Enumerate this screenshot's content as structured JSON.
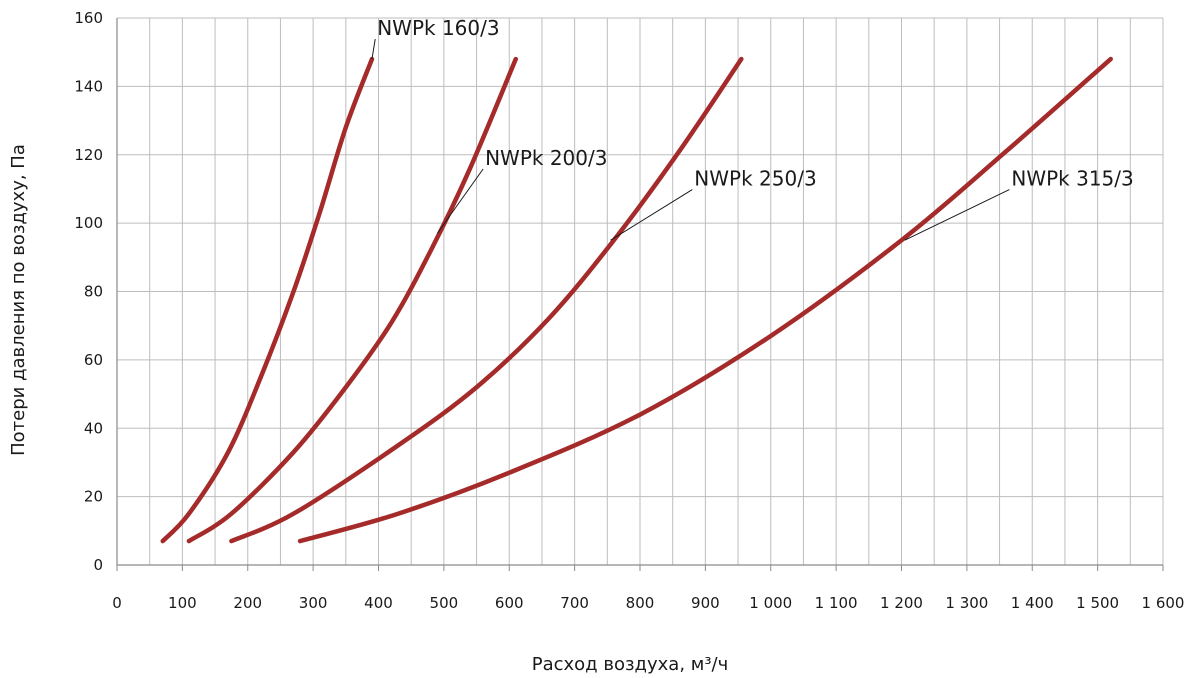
{
  "chart_data": {
    "type": "line",
    "title": "",
    "xlabel": "Расход воздуха, м³/ч",
    "ylabel": "Потери давления по воздуху, Па",
    "xlim": [
      0,
      1600
    ],
    "ylim": [
      0,
      160
    ],
    "x_ticks": [
      0,
      100,
      200,
      300,
      400,
      500,
      600,
      700,
      800,
      900,
      1000,
      1100,
      1200,
      1300,
      1400,
      1500,
      1600
    ],
    "x_tick_labels": [
      "0",
      "100",
      "200",
      "300",
      "400",
      "500",
      "600",
      "700",
      "800",
      "900",
      "1 000",
      "1 100",
      "1 200",
      "1 300",
      "1 400",
      "1 500",
      "1 600"
    ],
    "y_ticks": [
      0,
      20,
      40,
      60,
      80,
      100,
      120,
      140,
      160
    ],
    "y_tick_labels": [
      "0",
      "20",
      "40",
      "60",
      "80",
      "100",
      "120",
      "140",
      "160"
    ],
    "grid": true,
    "legend": "none",
    "line_color": "#A52A2A",
    "series": [
      {
        "name": "NWPk 160/3",
        "x": [
          70,
          110,
          170,
          220,
          270,
          310,
          350,
          390
        ],
        "y": [
          7,
          15,
          33,
          55,
          80,
          103,
          128,
          148
        ],
        "label_anchor": [
          390,
          148
        ],
        "label_pos": [
          395,
          155
        ]
      },
      {
        "name": "NWPk 200/3",
        "x": [
          110,
          175,
          270,
          350,
          420,
          480,
          540,
          610
        ],
        "y": [
          7,
          15,
          33,
          52,
          71,
          92,
          116,
          148
        ],
        "label_anchor": [
          490,
          97
        ],
        "label_pos": [
          560,
          117
        ]
      },
      {
        "name": "NWPk 250/3",
        "x": [
          175,
          270,
          430,
          550,
          660,
          760,
          860,
          955
        ],
        "y": [
          7,
          15,
          35,
          52,
          72,
          95,
          121,
          148
        ],
        "label_anchor": [
          755,
          95
        ],
        "label_pos": [
          880,
          111
        ]
      },
      {
        "name": "NWPk 315/3",
        "x": [
          280,
          430,
          600,
          800,
          1000,
          1200,
          1360,
          1520
        ],
        "y": [
          7,
          15,
          27,
          44,
          67,
          95,
          121,
          148
        ],
        "label_anchor": [
          1205,
          95
        ],
        "label_pos": [
          1365,
          111
        ]
      }
    ]
  }
}
